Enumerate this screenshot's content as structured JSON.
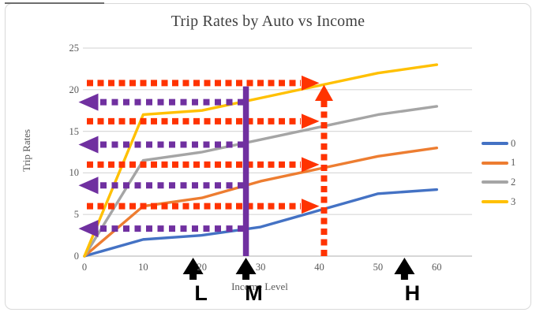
{
  "chart_data": {
    "type": "line",
    "title": "Trip Rates by Auto vs Income",
    "xlabel": "Income Level",
    "ylabel": "Trip Rates",
    "xlim": [
      0,
      60
    ],
    "ylim": [
      0,
      25
    ],
    "x_ticks": [
      0,
      10,
      20,
      30,
      40,
      50,
      60
    ],
    "y_ticks": [
      0,
      5,
      10,
      15,
      20,
      25
    ],
    "grid": "horizontal",
    "legend_position": "right",
    "x": [
      0,
      10,
      20,
      30,
      40,
      50,
      60
    ],
    "series": [
      {
        "name": "0",
        "color": "#4472C4",
        "values": [
          0,
          2,
          2.5,
          3.5,
          5.5,
          7.5,
          8
        ]
      },
      {
        "name": "1",
        "color": "#ED7D31",
        "values": [
          0,
          6,
          7,
          9,
          10.5,
          12,
          13
        ]
      },
      {
        "name": "2",
        "color": "#A5A5A5",
        "values": [
          0,
          11.5,
          12.5,
          14,
          15.5,
          17,
          18
        ]
      },
      {
        "name": "3",
        "color": "#FFC000",
        "values": [
          0,
          17,
          17.5,
          19,
          20.5,
          22,
          23
        ]
      }
    ],
    "annotations": {
      "left_dashed_arrows": {
        "color": "#7030A0",
        "direction": "left",
        "y_values": [
          18.5,
          13.4,
          8.5,
          3.3
        ],
        "x_tip": -1,
        "x_tail": 27.5
      },
      "right_dashed_arrows": {
        "color": "#FF3300",
        "direction": "right",
        "y_values": [
          20.8,
          16.2,
          11,
          6
        ],
        "x_tail": 0.4,
        "x_tip": 40
      },
      "vertical_solid_line": {
        "color": "#7030A0",
        "x": 27.5,
        "y_from": 0,
        "y_to": 20.4
      },
      "vertical_dashed_arrow": {
        "color": "#FF3300",
        "x": 40.8,
        "y_from": 0,
        "y_tip": 20.6
      },
      "axis_markers": [
        {
          "label": "L",
          "x": 18.5
        },
        {
          "label": "M",
          "x": 27.5
        },
        {
          "label": "H",
          "x": 54.5
        }
      ]
    }
  }
}
